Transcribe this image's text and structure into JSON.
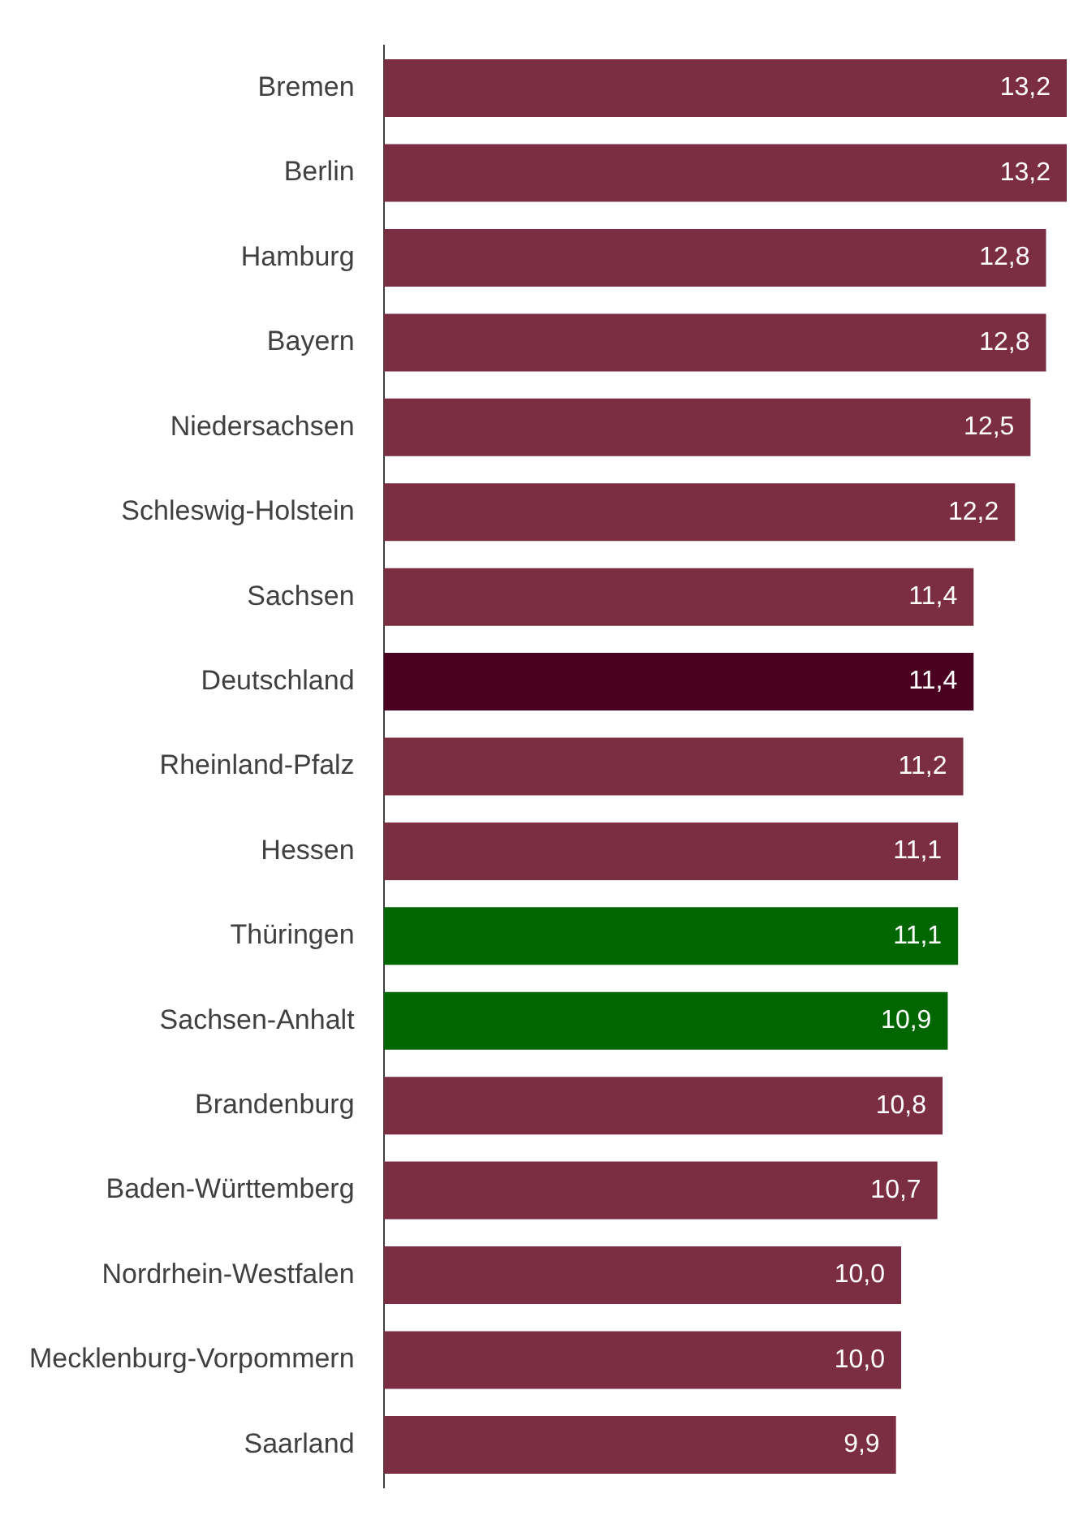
{
  "chart_data": {
    "type": "bar",
    "orientation": "horizontal",
    "tick_labels": "y",
    "categories": [
      "Bremen",
      "Berlin",
      "Hamburg",
      "Bayern",
      "Niedersachsen",
      "Schleswig-Holstein",
      "Sachsen",
      "Deutschland",
      "Rheinland-Pfalz",
      "Hessen",
      "Thüringen",
      "Sachsen-Anhalt",
      "Brandenburg",
      "Baden-Württemberg",
      "Nordrhein-Westfalen",
      "Mecklenburg-Vorpommern",
      "Saarland"
    ],
    "values": [
      13.2,
      13.2,
      12.8,
      12.8,
      12.5,
      12.2,
      11.4,
      11.4,
      11.2,
      11.1,
      11.1,
      10.9,
      10.8,
      10.7,
      10.0,
      10.0,
      9.9
    ],
    "value_labels": [
      "13,2",
      "13,2",
      "12,8",
      "12,8",
      "12,5",
      "12,2",
      "11,4",
      "11,4",
      "11,2",
      "11,1",
      "11,1",
      "10,9",
      "10,8",
      "10,7",
      "10,0",
      "10,0",
      "9,9"
    ],
    "colors": [
      "#7b2d42",
      "#7b2d42",
      "#7b2d42",
      "#7b2d42",
      "#7b2d42",
      "#7b2d42",
      "#7b2d42",
      "#4a0020",
      "#7b2d42",
      "#7b2d42",
      "#006600",
      "#006600",
      "#7b2d42",
      "#7b2d42",
      "#7b2d42",
      "#7b2d42",
      "#7b2d42"
    ]
  }
}
